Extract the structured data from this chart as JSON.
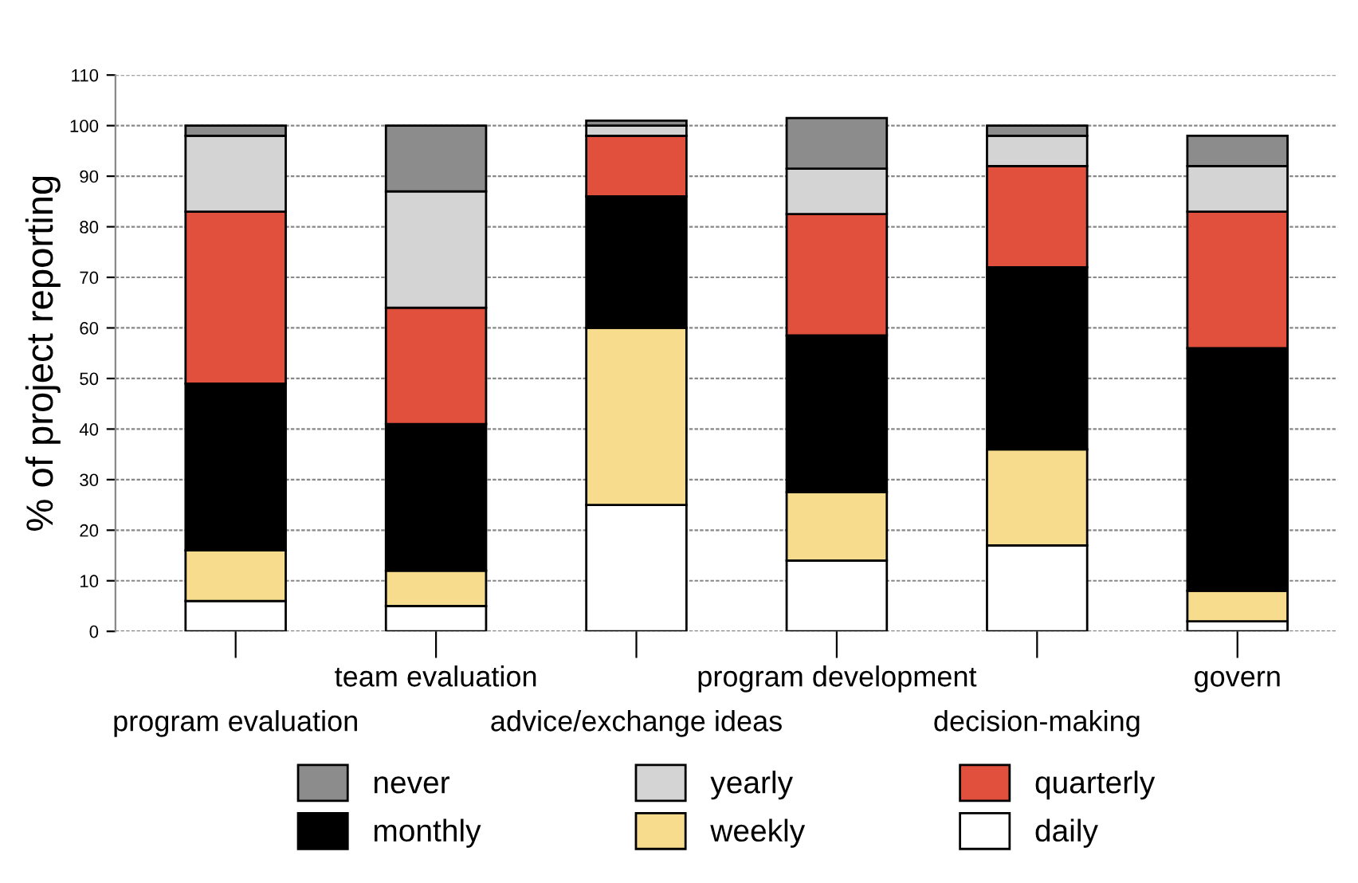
{
  "chart_data": {
    "type": "bar",
    "stacked": true,
    "ylabel": "% of project reporting",
    "categories": [
      "program evaluation",
      "team evaluation",
      "advice/exchange ideas",
      "program development",
      "decision-making",
      "govern"
    ],
    "series": [
      {
        "name": "daily",
        "color": "#ffffff",
        "values": [
          6,
          5,
          25,
          14,
          17,
          2
        ]
      },
      {
        "name": "weekly",
        "color": "#f7dc8e",
        "values": [
          10,
          7,
          35,
          13.5,
          19,
          6
        ]
      },
      {
        "name": "monthly",
        "color": "#000000",
        "values": [
          33,
          29,
          26,
          31,
          36,
          48
        ]
      },
      {
        "name": "quarterly",
        "color": "#e0503c",
        "values": [
          34,
          23,
          12,
          24,
          20,
          27
        ]
      },
      {
        "name": "yearly",
        "color": "#d4d4d4",
        "values": [
          15,
          23,
          2,
          9,
          6,
          9
        ]
      },
      {
        "name": "never",
        "color": "#8c8c8c",
        "values": [
          2,
          13,
          1,
          10,
          2,
          6
        ]
      }
    ],
    "ylim": [
      0,
      110
    ],
    "yticks": [
      0,
      10,
      20,
      30,
      40,
      50,
      60,
      70,
      80,
      90,
      100,
      110
    ],
    "grid": "y",
    "legend": "bottom"
  }
}
